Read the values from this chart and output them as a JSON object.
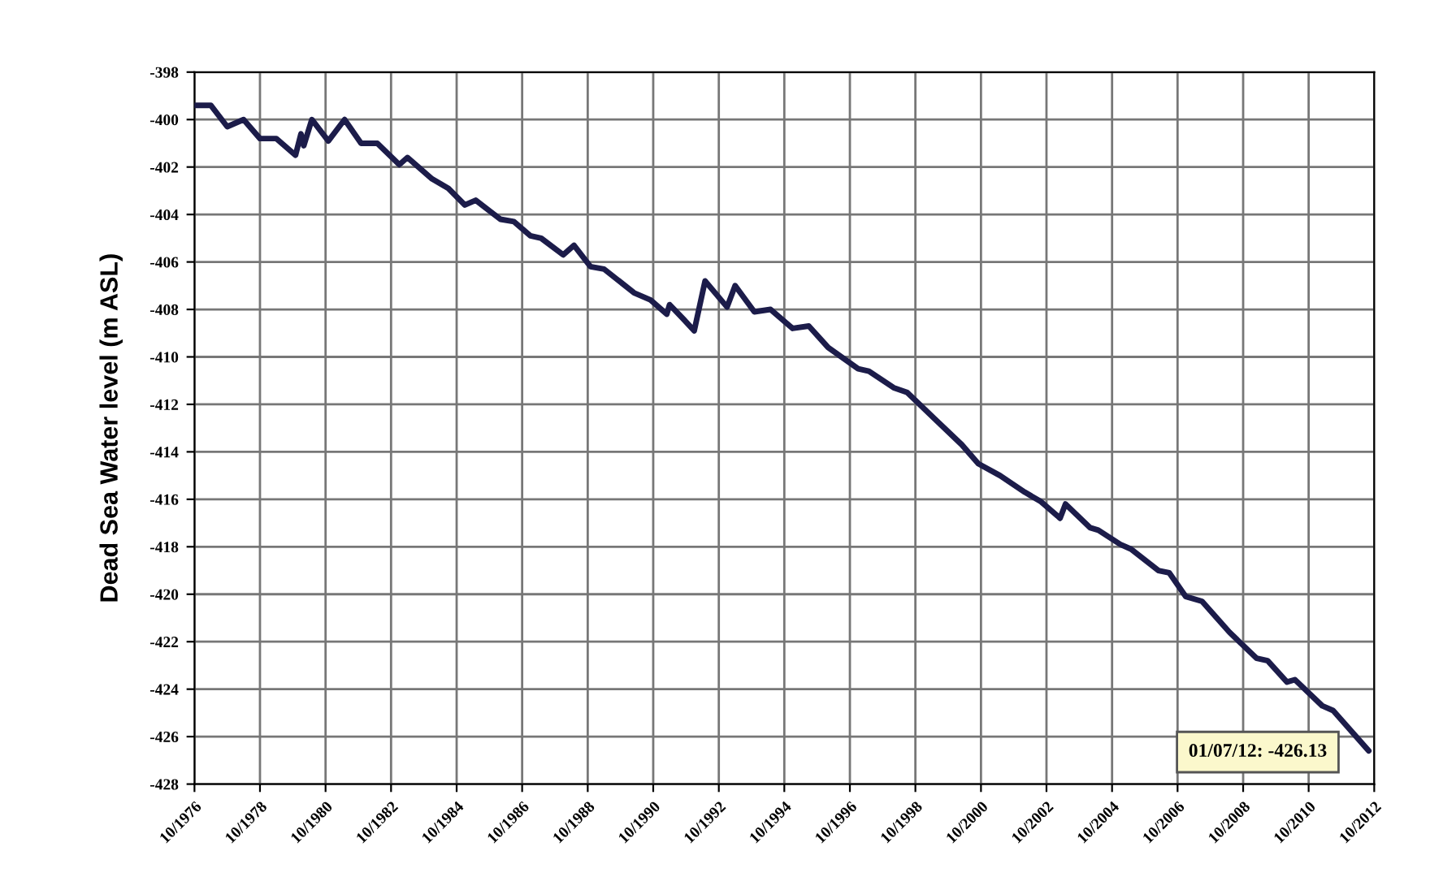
{
  "chart_data": {
    "type": "line",
    "ylabel": "Dead Sea Water level (m ASL)",
    "annotations": [
      "01/07/12: -426.13"
    ],
    "xlim": [
      "1976-10",
      "2012-10"
    ],
    "xticks": [
      {
        "value": "1976-10",
        "label": "10/1976"
      },
      {
        "value": "1978-10",
        "label": "10/1978"
      },
      {
        "value": "1980-10",
        "label": "10/1980"
      },
      {
        "value": "1982-10",
        "label": "10/1982"
      },
      {
        "value": "1984-10",
        "label": "10/1984"
      },
      {
        "value": "1986-10",
        "label": "10/1986"
      },
      {
        "value": "1988-10",
        "label": "10/1988"
      },
      {
        "value": "1990-10",
        "label": "10/1990"
      },
      {
        "value": "1992-10",
        "label": "10/1992"
      },
      {
        "value": "1994-10",
        "label": "10/1994"
      },
      {
        "value": "1996-10",
        "label": "10/1996"
      },
      {
        "value": "1998-10",
        "label": "10/1998"
      },
      {
        "value": "2000-10",
        "label": "10/2000"
      },
      {
        "value": "2002-10",
        "label": "10/2002"
      },
      {
        "value": "2004-10",
        "label": "10/2004"
      },
      {
        "value": "2006-10",
        "label": "10/2006"
      },
      {
        "value": "2008-10",
        "label": "10/2008"
      },
      {
        "value": "2010-10",
        "label": "10/2010"
      },
      {
        "value": "2012-10",
        "label": "10/2012"
      }
    ],
    "ylim": [
      -428,
      -398
    ],
    "yticks": [
      -428,
      -426,
      -424,
      -422,
      -420,
      -418,
      -416,
      -414,
      -412,
      -410,
      -408,
      -406,
      -404,
      -402,
      -400,
      -398
    ],
    "grid": true,
    "series": [
      {
        "color": "#1c1c4a",
        "x": [
          "1976-10",
          "1977-04",
          "1977-10",
          "1978-04",
          "1978-10",
          "1979-04",
          "1979-11",
          "1980-01",
          "1980-02",
          "1980-05",
          "1980-11",
          "1981-05",
          "1981-11",
          "1982-05",
          "1983-01",
          "1983-04",
          "1984-01",
          "1984-07",
          "1985-01",
          "1985-05",
          "1986-02",
          "1986-07",
          "1987-01",
          "1987-05",
          "1988-01",
          "1988-05",
          "1988-11",
          "1989-04",
          "1990-03",
          "1990-09",
          "1991-03",
          "1991-04",
          "1991-09",
          "1992-01",
          "1992-05",
          "1993-01",
          "1993-04",
          "1993-11",
          "1994-05",
          "1995-01",
          "1995-07",
          "1996-02",
          "1997-01",
          "1997-05",
          "1998-02",
          "1998-07",
          "1999-05",
          "2000-03",
          "2000-09",
          "2001-05",
          "2002-02",
          "2002-08",
          "2003-02",
          "2003-03",
          "2003-05",
          "2004-02",
          "2004-05",
          "2005-01",
          "2005-05",
          "2006-03",
          "2006-07",
          "2007-01",
          "2007-07",
          "2008-05",
          "2009-03",
          "2009-07",
          "2010-02",
          "2010-05",
          "2011-03",
          "2011-07",
          "2012-08"
        ],
        "values": [
          -399.4,
          -399.4,
          -400.3,
          -400.0,
          -400.8,
          -400.8,
          -401.5,
          -400.6,
          -401.1,
          -400.0,
          -400.9,
          -400.0,
          -401.0,
          -401.0,
          -401.9,
          -401.6,
          -402.5,
          -402.9,
          -403.6,
          -403.4,
          -404.2,
          -404.3,
          -404.9,
          -405.0,
          -405.7,
          -405.3,
          -406.2,
          -406.3,
          -407.3,
          -407.6,
          -408.2,
          -407.8,
          -408.4,
          -408.9,
          -406.8,
          -407.9,
          -407.0,
          -408.1,
          -408.0,
          -408.8,
          -408.7,
          -409.6,
          -410.5,
          -410.6,
          -411.3,
          -411.5,
          -412.6,
          -413.7,
          -414.5,
          -415.0,
          -415.7,
          -416.1,
          -416.7,
          -416.8,
          -416.2,
          -417.2,
          -417.3,
          -417.9,
          -418.1,
          -419.0,
          -419.1,
          -420.1,
          -420.3,
          -421.6,
          -422.7,
          -422.8,
          -423.7,
          -423.6,
          -424.7,
          -424.9,
          -426.6
        ]
      }
    ]
  }
}
